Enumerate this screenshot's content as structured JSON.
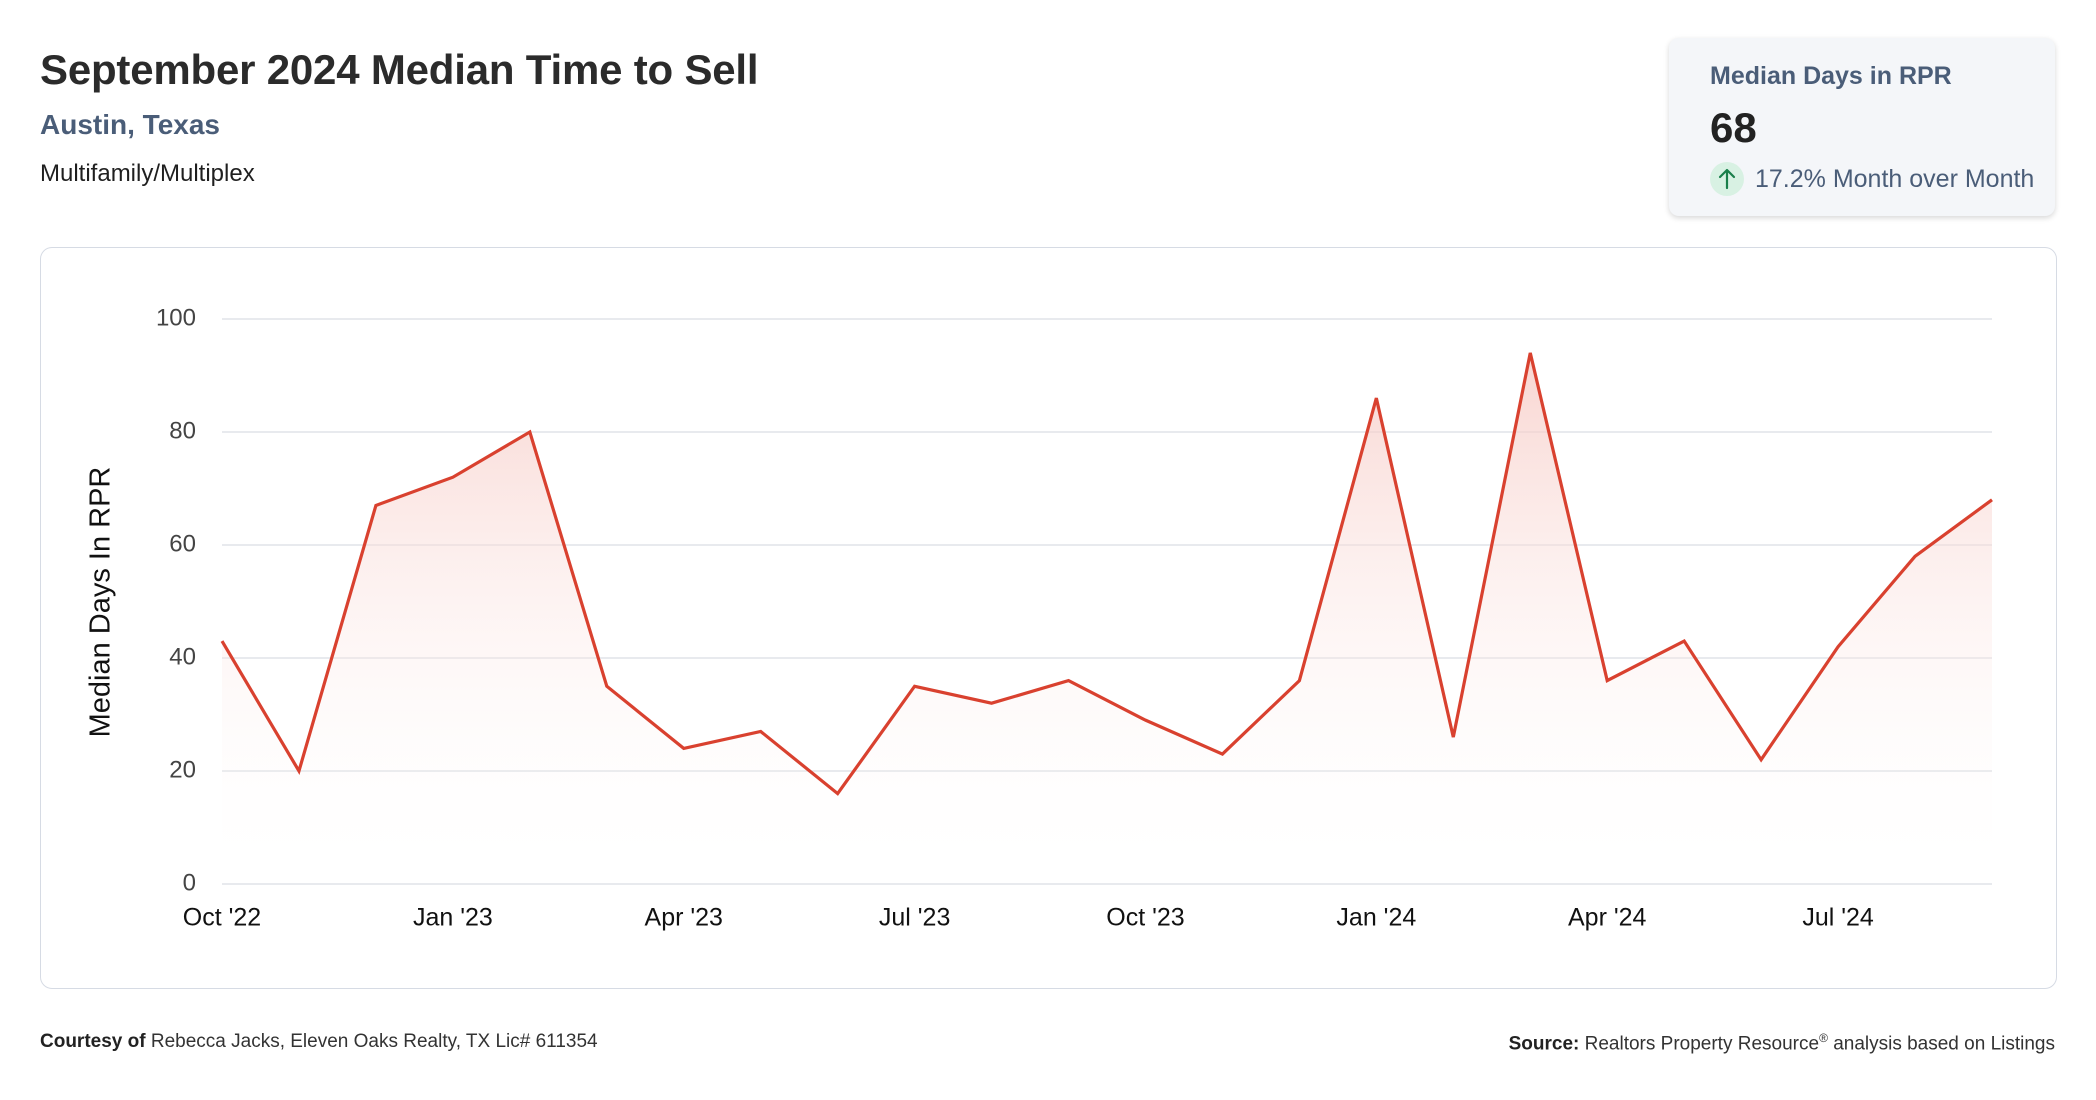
{
  "header": {
    "title": "September 2024 Median Time to Sell",
    "location": "Austin, Texas",
    "category": "Multifamily/Multiplex"
  },
  "stat_card": {
    "label": "Median Days in RPR",
    "value": "68",
    "change": "17.2% Month over Month",
    "change_icon": "arrow-up-icon",
    "change_color": "#1a7f4b"
  },
  "footer": {
    "courtesy_label": "Courtesy of",
    "courtesy_text": "Rebecca Jacks, Eleven Oaks Realty, TX Lic# 611354",
    "source_label": "Source:",
    "source_text_1": "Realtors Property Resource",
    "source_reg": "®",
    "source_text_2": "analysis based on Listings"
  },
  "colors": {
    "line": "#d9412f",
    "fill_top": "#f6c7c1",
    "grid": "#dadde3"
  },
  "chart_data": {
    "type": "area",
    "ylabel": "Median Days In RPR",
    "ylim": [
      0,
      100
    ],
    "yticks": [
      0,
      20,
      40,
      60,
      80,
      100
    ],
    "grid": true,
    "x": [
      "Oct '22",
      "Nov '22",
      "Dec '22",
      "Jan '23",
      "Feb '23",
      "Mar '23",
      "Apr '23",
      "May '23",
      "Jun '23",
      "Jul '23",
      "Aug '23",
      "Sep '23",
      "Oct '23",
      "Nov '23",
      "Dec '23",
      "Jan '24",
      "Feb '24",
      "Mar '24",
      "Apr '24",
      "May '24",
      "Jun '24",
      "Jul '24",
      "Aug '24",
      "Sep '24"
    ],
    "xtick_labels": [
      "Oct '22",
      "Jan '23",
      "Apr '23",
      "Jul '23",
      "Oct '23",
      "Jan '24",
      "Apr '24",
      "Jul '24"
    ],
    "xtick_indices": [
      0,
      3,
      6,
      9,
      12,
      15,
      18,
      21
    ],
    "series": [
      {
        "values": [
          43,
          20,
          67,
          72,
          80,
          35,
          24,
          27,
          16,
          35,
          32,
          36,
          29,
          23,
          36,
          86,
          26,
          94,
          36,
          43,
          22,
          42,
          58,
          68
        ]
      }
    ]
  }
}
